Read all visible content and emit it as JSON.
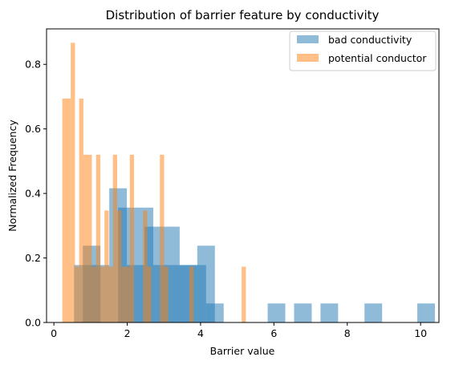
{
  "chart_data": {
    "type": "bar",
    "title": "Distribution of barrier feature by conductivity",
    "xlabel": "Barrier value",
    "ylabel": "Normalized Frequency",
    "xlim": [
      -0.2,
      10.5
    ],
    "ylim": [
      0,
      0.91
    ],
    "xticks": [
      0,
      2,
      4,
      6,
      8,
      10
    ],
    "yticks": [
      0.0,
      0.2,
      0.4,
      0.6,
      0.8
    ],
    "xtick_labels": [
      "0",
      "2",
      "4",
      "6",
      "8",
      "10"
    ],
    "ytick_labels": [
      "0.0",
      "0.2",
      "0.4",
      "0.6",
      "0.8"
    ],
    "grid": false,
    "legend_position": "top-right",
    "series": [
      {
        "name": "bad conductivity",
        "color": "#1f77b4",
        "opacity": 0.5,
        "bin_width": 0.48,
        "bins": [
          {
            "x0": 0.55,
            "value": 0.178
          },
          {
            "x0": 0.79,
            "value": 0.238
          },
          {
            "x0": 1.03,
            "value": 0.178
          },
          {
            "x0": 1.51,
            "value": 0.416
          },
          {
            "x0": 1.75,
            "value": 0.356
          },
          {
            "x0": 1.99,
            "value": 0.178
          },
          {
            "x0": 2.23,
            "value": 0.356
          },
          {
            "x0": 2.47,
            "value": 0.297
          },
          {
            "x0": 2.71,
            "value": 0.178
          },
          {
            "x0": 2.95,
            "value": 0.297
          },
          {
            "x0": 3.19,
            "value": 0.178
          },
          {
            "x0": 3.43,
            "value": 0.178
          },
          {
            "x0": 3.67,
            "value": 0.178
          },
          {
            "x0": 3.91,
            "value": 0.238
          },
          {
            "x0": 4.15,
            "value": 0.059
          },
          {
            "x0": 5.83,
            "value": 0.059
          },
          {
            "x0": 6.55,
            "value": 0.059
          },
          {
            "x0": 7.27,
            "value": 0.059
          },
          {
            "x0": 8.47,
            "value": 0.059
          },
          {
            "x0": 9.91,
            "value": 0.059
          }
        ]
      },
      {
        "name": "potential conductor",
        "color": "#ff7f0e",
        "opacity": 0.5,
        "bin_width": 0.115,
        "bins": [
          {
            "x0": 0.23,
            "value": 0.694
          },
          {
            "x0": 0.345,
            "value": 0.694
          },
          {
            "x0": 0.46,
            "value": 0.867
          },
          {
            "x0": 0.575,
            "value": 0.173
          },
          {
            "x0": 0.69,
            "value": 0.694
          },
          {
            "x0": 0.805,
            "value": 0.52
          },
          {
            "x0": 0.92,
            "value": 0.52
          },
          {
            "x0": 1.035,
            "value": 0.173
          },
          {
            "x0": 1.15,
            "value": 0.52
          },
          {
            "x0": 1.265,
            "value": 0.173
          },
          {
            "x0": 1.38,
            "value": 0.347
          },
          {
            "x0": 1.495,
            "value": 0.173
          },
          {
            "x0": 1.61,
            "value": 0.52
          },
          {
            "x0": 1.725,
            "value": 0.347
          },
          {
            "x0": 1.84,
            "value": 0.173
          },
          {
            "x0": 1.955,
            "value": 0.173
          },
          {
            "x0": 2.07,
            "value": 0.52
          },
          {
            "x0": 2.43,
            "value": 0.347
          },
          {
            "x0": 2.545,
            "value": 0.173
          },
          {
            "x0": 2.89,
            "value": 0.52
          },
          {
            "x0": 3.005,
            "value": 0.173
          },
          {
            "x0": 3.695,
            "value": 0.173
          },
          {
            "x0": 5.12,
            "value": 0.173
          }
        ]
      }
    ]
  }
}
